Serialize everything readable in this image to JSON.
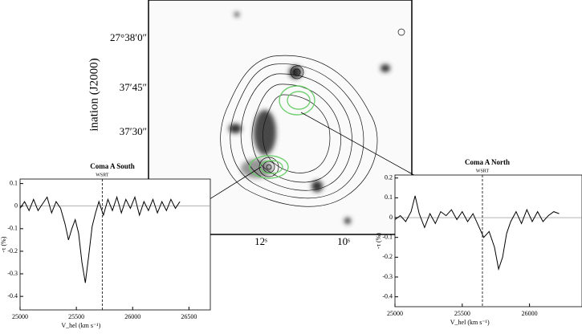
{
  "map": {
    "ylabel": "ination (J2000)",
    "yticks": [
      "27°38′0″",
      "37′45″",
      "37′30″"
    ],
    "xticks": [
      "12ˢ",
      "10ˢ"
    ]
  },
  "chart_data": [
    {
      "type": "line",
      "title": "Coma A South",
      "annotation": "WSRT",
      "marker_x": 25730,
      "xlabel": "V_hel (km s⁻¹)",
      "ylabel": "-τ (%)",
      "x": [
        25000,
        25040,
        25080,
        25120,
        25160,
        25200,
        25240,
        25280,
        25320,
        25360,
        25400,
        25430,
        25460,
        25490,
        25520,
        25550,
        25580,
        25610,
        25640,
        25670,
        25700,
        25740,
        25780,
        25820,
        25860,
        25900,
        25940,
        25980,
        26020,
        26060,
        26100,
        26140,
        26180,
        26220,
        26260,
        26300,
        26340,
        26380,
        26420
      ],
      "series": [
        {
          "name": "Coma A South",
          "color": "#000000",
          "values": [
            -0.01,
            0.02,
            -0.02,
            0.03,
            -0.02,
            0.01,
            0.04,
            -0.03,
            0.02,
            -0.01,
            -0.08,
            -0.15,
            -0.1,
            -0.06,
            -0.12,
            -0.25,
            -0.34,
            -0.22,
            -0.09,
            -0.03,
            0.02,
            -0.04,
            0.03,
            -0.02,
            0.04,
            -0.03,
            0.03,
            -0.01,
            0.04,
            -0.04,
            0.02,
            -0.02,
            0.03,
            -0.03,
            0.02,
            -0.02,
            0.03,
            -0.01,
            0.02
          ]
        }
      ],
      "xlim": [
        25000,
        26690
      ],
      "ylim": [
        -0.46,
        0.12
      ],
      "xticks": [
        25000,
        25500,
        26000,
        26500
      ],
      "yticks": [
        0.1,
        0,
        -0.1,
        -0.2,
        -0.3,
        -0.4
      ]
    },
    {
      "type": "line",
      "title": "Coma A North",
      "annotation": "WSRT",
      "marker_x": 25650,
      "xlabel": "V_hel (km s⁻¹)",
      "ylabel": "-τ (%)",
      "x": [
        25000,
        25040,
        25080,
        25120,
        25150,
        25180,
        25220,
        25260,
        25300,
        25340,
        25380,
        25420,
        25460,
        25500,
        25540,
        25580,
        25620,
        25660,
        25700,
        25740,
        25770,
        25800,
        25830,
        25860,
        25900,
        25940,
        25980,
        26020,
        26060,
        26100,
        26140,
        26180,
        26220
      ],
      "series": [
        {
          "name": "Coma A North",
          "color": "#000000",
          "values": [
            -0.01,
            0.01,
            -0.02,
            0.03,
            0.11,
            0.02,
            -0.05,
            0.02,
            -0.03,
            0.03,
            0.01,
            0.04,
            -0.01,
            0.03,
            -0.02,
            0.02,
            -0.04,
            -0.1,
            -0.07,
            -0.15,
            -0.26,
            -0.2,
            -0.08,
            -0.02,
            0.03,
            -0.03,
            0.04,
            -0.02,
            0.03,
            -0.02,
            0.01,
            0.03,
            0.02
          ]
        }
      ],
      "xlim": [
        25000,
        26390
      ],
      "ylim": [
        -0.45,
        0.215
      ],
      "xticks": [
        25000,
        25500,
        26000
      ],
      "yticks": [
        0.2,
        0.1,
        0,
        -0.1,
        -0.2,
        -0.3,
        -0.4
      ]
    }
  ]
}
